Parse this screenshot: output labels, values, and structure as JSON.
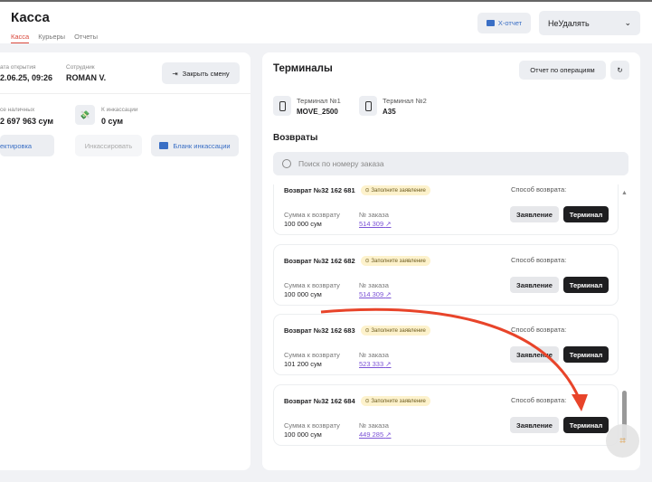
{
  "header": {
    "title": "Касса",
    "tabs": [
      "Касса",
      "Курьеры",
      "Отчеты"
    ],
    "x_report": "X-отчет",
    "select_value": "НеУдалять"
  },
  "shift": {
    "open_date_label": "ата открытия",
    "open_date": "2.06.25, 09:26",
    "employee_label": "Сотрудник",
    "employee": "ROMAN V.",
    "close_shift": "Закрыть смену",
    "cash_label": "се наличных",
    "cash": "2 697 963 сум",
    "collect_label": "К инкассации",
    "collect": "0 сум",
    "correction": "ектировка",
    "collect_btn": "Инкассировать",
    "collect_form": "Бланк инкассации"
  },
  "terminals": {
    "title": "Терминалы",
    "report_btn": "Отчет по операциям",
    "items": [
      {
        "name": "Терминал №1",
        "model": "MOVE_2500"
      },
      {
        "name": "Терминал №2",
        "model": "A35"
      }
    ]
  },
  "returns": {
    "title": "Возвраты",
    "search_placeholder": "Поиск по номеру заказа",
    "sum_label": "Сумма к возврату",
    "order_label": "№ заказа",
    "method_label": "Способ возврата:",
    "badge": "Заполните заявление",
    "btn_statement": "Заявление",
    "btn_terminal": "Терминал",
    "items": [
      {
        "title": "Возврат №32 162 681",
        "sum": "100 000 сум",
        "order": "514 309"
      },
      {
        "title": "Возврат №32 162 682",
        "sum": "100 000 сум",
        "order": "514 309"
      },
      {
        "title": "Возврат №32 162 683",
        "sum": "101 200 сум",
        "order": "523 333"
      },
      {
        "title": "Возврат №32 162 684",
        "sum": "100 000 сум",
        "order": "449 285"
      }
    ]
  },
  "colors": {
    "accent": "#d9463a",
    "link": "#7b52d6",
    "annotation_arrow": "#e8442a"
  }
}
